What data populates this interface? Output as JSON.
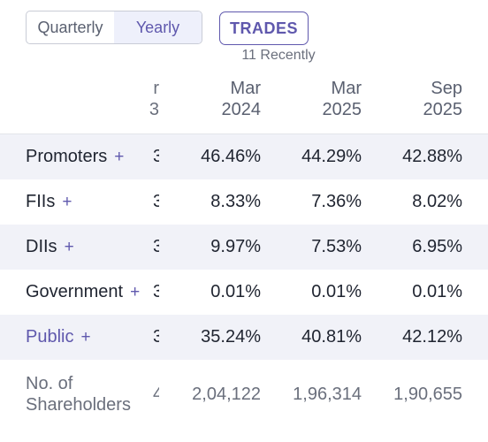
{
  "toggle": {
    "quarterly": "Quarterly",
    "yearly": "Yearly",
    "active": "Yearly"
  },
  "trades": {
    "label": "TRADES",
    "recent": "11 Recently"
  },
  "columns": [
    {
      "line1": "r",
      "line2": "3"
    },
    {
      "line1": "Mar",
      "line2": "2024"
    },
    {
      "line1": "Mar",
      "line2": "2025"
    },
    {
      "line1": "Sep",
      "line2": "2025"
    }
  ],
  "rows": [
    {
      "label": "Promoters",
      "plus": "+",
      "partial": "3",
      "values": [
        "46.46%",
        "44.29%",
        "42.88%"
      ]
    },
    {
      "label": "FIIs",
      "plus": "+",
      "partial": "3",
      "values": [
        "8.33%",
        "7.36%",
        "8.02%"
      ]
    },
    {
      "label": "DIIs",
      "plus": "+",
      "partial": "3",
      "values": [
        "9.97%",
        "7.53%",
        "6.95%"
      ]
    },
    {
      "label": "Government",
      "plus": "+",
      "partial": "3",
      "values": [
        "0.01%",
        "0.01%",
        "0.01%"
      ]
    },
    {
      "label": "Public",
      "plus": "+",
      "partial": "3",
      "values": [
        "35.24%",
        "40.81%",
        "42.12%"
      ]
    }
  ],
  "shareholders": {
    "line1": "No. of",
    "line2": "Shareholders",
    "partial": "4",
    "values": [
      "2,04,122",
      "1,96,314",
      "1,90,655"
    ]
  },
  "colors": {
    "accent": "#5f58ad",
    "shaded": "#f1f2f8"
  }
}
